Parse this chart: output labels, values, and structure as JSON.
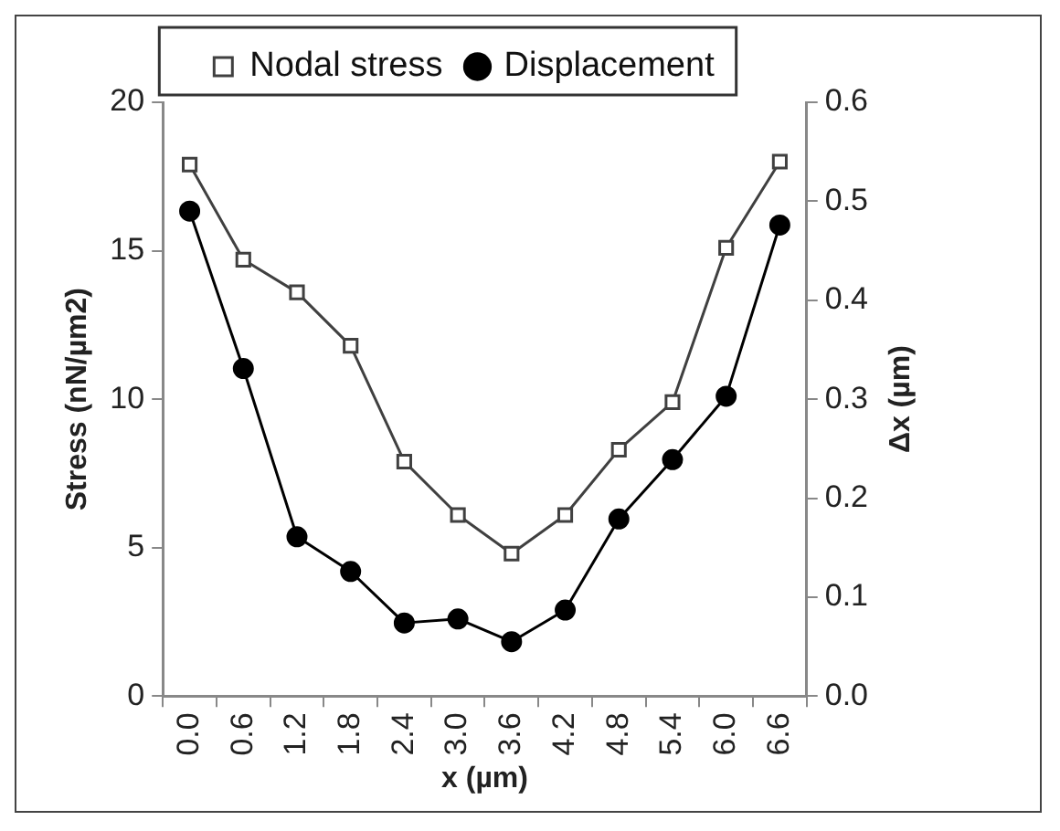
{
  "chart_data": {
    "type": "line",
    "xlabel": "x (µm)",
    "ylabel": "Stress (nN/µm2)",
    "y2label": "Δx (µm)",
    "categories": [
      "0.0",
      "0.6",
      "1.2",
      "1.8",
      "2.4",
      "3.0",
      "3.6",
      "4.2",
      "4.8",
      "5.4",
      "6.0",
      "6.6"
    ],
    "series": [
      {
        "name": "Nodal stress",
        "color": "#404040",
        "marker": "square",
        "values": [
          17.9,
          14.7,
          13.6,
          11.8,
          7.9,
          6.1,
          4.8,
          6.1,
          8.3,
          9.9,
          15.1,
          18.0
        ]
      },
      {
        "name": "Displacement",
        "color": "#000000",
        "marker": "circle",
        "axis": "y2",
        "values": [
          0.49,
          0.331,
          0.161,
          0.126,
          0.074,
          0.078,
          0.055,
          0.087,
          0.179,
          0.239,
          0.303,
          0.476
        ]
      }
    ],
    "ylim": [
      0,
      20
    ],
    "yticks": [
      0,
      5,
      10,
      15,
      20
    ],
    "y2lim": [
      0,
      0.6
    ],
    "y2ticks": [
      {
        "value": 0,
        "label": "0.0"
      },
      {
        "value": 0.1,
        "label": "0.1"
      },
      {
        "value": 0.2,
        "label": "0.2"
      },
      {
        "value": 0.3,
        "label": "0.3"
      },
      {
        "value": 0.4,
        "label": "0.4"
      },
      {
        "value": 0.5,
        "label": "0.5"
      },
      {
        "value": 0.6,
        "label": "0.6"
      }
    ],
    "grid": false,
    "legend": "top",
    "line_style": "solid"
  }
}
